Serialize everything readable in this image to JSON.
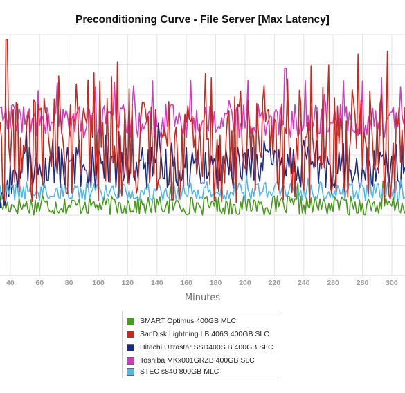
{
  "chart_data": {
    "type": "line",
    "title": "Preconditioning Curve - File Server [Max Latency]",
    "xlabel": "Minutes",
    "ylabel": "",
    "x_ticks": [
      40,
      60,
      80,
      100,
      120,
      140,
      160,
      180,
      200,
      220,
      240,
      260,
      280,
      300
    ],
    "xlim": [
      33,
      309
    ],
    "ylim": [
      0,
      100
    ],
    "grid": true,
    "legend_position": "bottom",
    "series": [
      {
        "name": "SMART Optimus 400GB MLC",
        "color": "#4a9a1e",
        "level": 29,
        "noise": 4,
        "spike_every": 29,
        "spike": 6
      },
      {
        "name": "SanDisk Lightning LB 406S 400GB SLC",
        "color": "#c8281e",
        "level": 52,
        "noise": 22,
        "spike_every": 4,
        "spike": 18
      },
      {
        "name": "Hitachi Ultrastar SSD400S.B 400GB SLC",
        "color": "#1c2a80",
        "level": 45,
        "noise": 9,
        "spike_every": 9,
        "spike": 8
      },
      {
        "name": "Toshiba MKx001GRZB 400GB SLC",
        "color": "#d23cc0",
        "level": 64,
        "noise": 7,
        "spike_every": 13,
        "spike": 12
      },
      {
        "name": "STEC s840 800GB MLC",
        "color": "#52b8e8",
        "level": 35,
        "noise": 4,
        "spike_every": 21,
        "spike": 4
      }
    ]
  }
}
